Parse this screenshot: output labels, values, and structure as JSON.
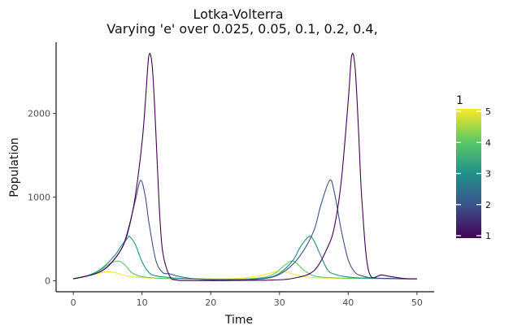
{
  "chart_data": {
    "type": "line",
    "title": "Lotka-Volterra",
    "subtitle": "Varying 'e' over 0.025, 0.05, 0.1, 0.2, 0.4,",
    "xlabel": "Time",
    "ylabel": "Population",
    "xlim": [
      -2.5,
      52.5
    ],
    "ylim": [
      -130,
      2850
    ],
    "xticks": [
      0,
      10,
      20,
      30,
      40,
      50
    ],
    "yticks": [
      0,
      1000,
      2000
    ],
    "grid": false,
    "legend": {
      "title": "1",
      "type": "colorbar",
      "placement": "right",
      "range": [
        1,
        5
      ],
      "ticks": [
        1,
        2,
        3,
        4,
        5
      ],
      "colors": [
        "#440154",
        "#3b528b",
        "#21908c",
        "#5dc863",
        "#fde725"
      ]
    },
    "series": [
      {
        "value": 1,
        "color": "#440154",
        "x": [
          0,
          3,
          5,
          7,
          8,
          9,
          10,
          10.5,
          11,
          11.5,
          12,
          12.5,
          13,
          14,
          15,
          17,
          20,
          23,
          26,
          29,
          32,
          35,
          37,
          38,
          39,
          40,
          40.5,
          41,
          41.5,
          42,
          43,
          45,
          48,
          50
        ],
        "y": [
          25,
          80,
          170,
          380,
          600,
          1000,
          1650,
          2150,
          2690,
          2550,
          1800,
          900,
          350,
          60,
          10,
          4,
          3,
          4,
          6,
          10,
          30,
          120,
          400,
          650,
          1200,
          2150,
          2690,
          2550,
          1800,
          950,
          110,
          70,
          30,
          25
        ]
      },
      {
        "value": 2,
        "color": "#3b528b",
        "x": [
          0,
          3,
          5,
          7,
          8,
          9,
          9.8,
          10.5,
          11,
          12,
          13,
          14,
          15,
          17,
          20,
          23,
          26,
          29,
          31,
          33,
          35,
          36,
          37.3,
          38,
          39,
          40,
          41,
          42,
          43,
          45,
          48,
          50
        ],
        "y": [
          25,
          80,
          170,
          380,
          620,
          950,
          1200,
          1000,
          700,
          250,
          100,
          85,
          60,
          30,
          12,
          8,
          15,
          45,
          130,
          300,
          600,
          900,
          1200,
          1050,
          600,
          250,
          100,
          60,
          40,
          30,
          25,
          25
        ]
      },
      {
        "value": 3,
        "color": "#21908c",
        "x": [
          0,
          2,
          4,
          6,
          7,
          8,
          8.2,
          9,
          10,
          11,
          12,
          14,
          16,
          19,
          22,
          25,
          28,
          30,
          32,
          33,
          34.3,
          35,
          36,
          37,
          38,
          40,
          42,
          45,
          48,
          50
        ],
        "y": [
          25,
          60,
          140,
          300,
          420,
          520,
          530,
          440,
          230,
          100,
          60,
          40,
          28,
          20,
          16,
          18,
          35,
          90,
          250,
          400,
          530,
          480,
          300,
          130,
          80,
          45,
          35,
          30,
          25,
          25
        ]
      },
      {
        "value": 4,
        "color": "#5dc863",
        "x": [
          0,
          2,
          4,
          5,
          6,
          6.7,
          7.5,
          8.5,
          9.5,
          11,
          13,
          16,
          19,
          22,
          25,
          28,
          29.5,
          30.5,
          31.7,
          32.5,
          33.5,
          35,
          37,
          40,
          44,
          48,
          50
        ],
        "y": [
          25,
          60,
          130,
          190,
          230,
          235,
          190,
          100,
          60,
          40,
          30,
          25,
          22,
          20,
          22,
          45,
          100,
          170,
          235,
          210,
          130,
          60,
          40,
          32,
          28,
          25,
          25
        ]
      },
      {
        "value": 5,
        "color": "#fde725",
        "x": [
          0,
          2,
          4,
          5,
          6,
          7,
          9,
          12,
          15,
          18,
          21,
          24,
          27,
          29,
          30,
          31,
          32,
          34,
          37,
          40,
          44,
          48,
          50
        ],
        "y": [
          25,
          60,
          95,
          110,
          100,
          75,
          45,
          32,
          28,
          25,
          24,
          28,
          60,
          100,
          115,
          105,
          80,
          45,
          33,
          28,
          26,
          25,
          25
        ]
      }
    ]
  }
}
